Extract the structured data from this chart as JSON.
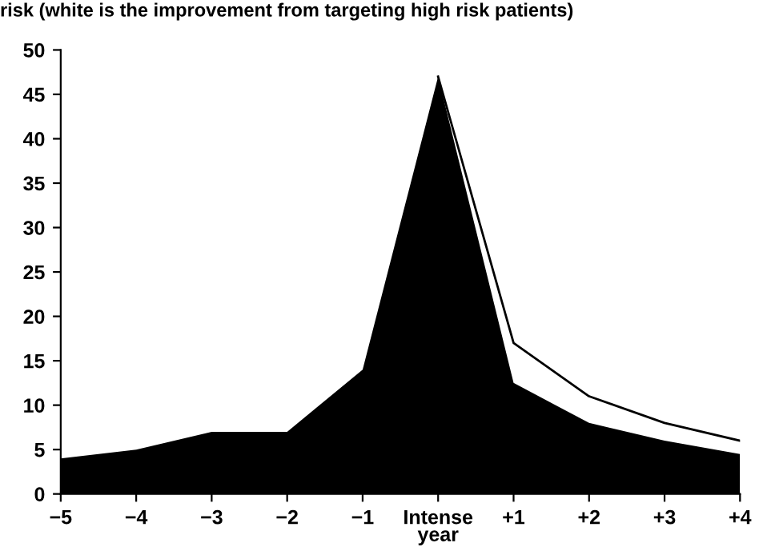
{
  "chart_data": {
    "type": "area",
    "title": "risk (white is the improvement from targeting high risk patients)",
    "categories": [
      "−5",
      "−4",
      "−3",
      "−2",
      "−1",
      "Intense\nyear",
      "+1",
      "+2",
      "+3",
      "+4"
    ],
    "series": [
      {
        "color": "#000000",
        "values": [
          4,
          5,
          7,
          7,
          14,
          47,
          12.5,
          8,
          6,
          4.5
        ]
      },
      {
        "type": "line",
        "color": "#000000",
        "values": [
          null,
          null,
          null,
          null,
          null,
          47,
          17,
          11,
          8,
          6
        ]
      }
    ],
    "ylim": [
      0,
      50
    ],
    "yticks": [
      0,
      5,
      10,
      15,
      20,
      25,
      30,
      35,
      40,
      45,
      50
    ],
    "grid": false,
    "legend": false
  }
}
